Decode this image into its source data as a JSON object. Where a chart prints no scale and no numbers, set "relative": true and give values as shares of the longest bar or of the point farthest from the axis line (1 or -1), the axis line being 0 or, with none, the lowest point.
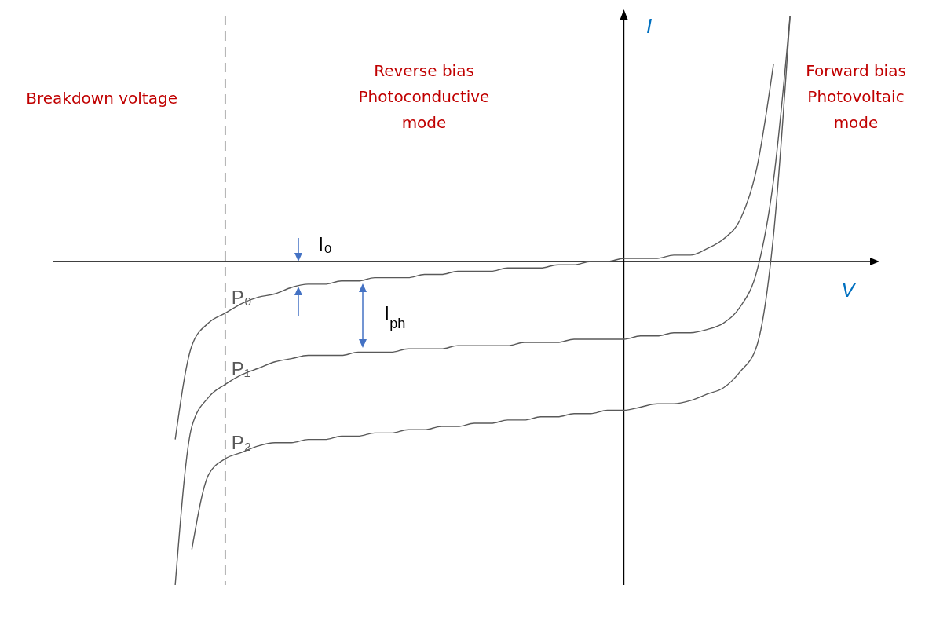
{
  "chart_data": {
    "type": "line",
    "relative": true,
    "xlabel": "V",
    "ylabel": "I",
    "categories": [
      null,
      null,
      null,
      null,
      null,
      null,
      null,
      null,
      null,
      null,
      null,
      null,
      null,
      null,
      null,
      null,
      null,
      null,
      null,
      null,
      null,
      null,
      null,
      null,
      null,
      null,
      null,
      null,
      null,
      null,
      null,
      null,
      null,
      null,
      null,
      null,
      null,
      null,
      null,
      null,
      null,
      null,
      null,
      null,
      null,
      null,
      null,
      null,
      null,
      null
    ],
    "series": [
      {
        "name": "P₀",
        "color": "#595959",
        "values": [
          null,
          null,
          null,
          null,
          null,
          null,
          null,
          -0.55,
          -0.26,
          -0.19,
          -0.16,
          -0.13,
          -0.11,
          -0.1,
          -0.08,
          -0.07,
          -0.07,
          -0.06,
          -0.06,
          -0.05,
          -0.05,
          -0.05,
          -0.04,
          -0.04,
          -0.03,
          -0.03,
          -0.03,
          -0.02,
          -0.02,
          -0.02,
          -0.01,
          -0.01,
          0,
          0,
          0.01,
          0.01,
          0.01,
          0.02,
          0.02,
          0.04,
          0.07,
          0.13,
          0.29,
          0.61,
          null,
          null,
          null,
          null,
          null,
          null
        ]
      },
      {
        "name": "P₁",
        "color": "#595959",
        "values": [
          null,
          null,
          null,
          null,
          null,
          null,
          null,
          -1,
          -0.51,
          -0.42,
          -0.38,
          -0.35,
          -0.33,
          -0.31,
          -0.3,
          -0.29,
          -0.29,
          -0.29,
          -0.28,
          -0.28,
          -0.28,
          -0.27,
          -0.27,
          -0.27,
          -0.26,
          -0.26,
          -0.26,
          -0.26,
          -0.25,
          -0.25,
          -0.25,
          -0.24,
          -0.24,
          -0.24,
          -0.24,
          -0.23,
          -0.23,
          -0.22,
          -0.22,
          -0.21,
          -0.19,
          -0.14,
          -0.03,
          0.25,
          0.76,
          null,
          null,
          null,
          null,
          null
        ]
      },
      {
        "name": "P₂",
        "color": "#595959",
        "values": [
          null,
          null,
          null,
          null,
          null,
          null,
          null,
          null,
          -0.89,
          -0.66,
          -0.61,
          -0.59,
          -0.57,
          -0.56,
          -0.56,
          -0.55,
          -0.55,
          -0.54,
          -0.54,
          -0.53,
          -0.53,
          -0.52,
          -0.52,
          -0.51,
          -0.51,
          -0.5,
          -0.5,
          -0.49,
          -0.49,
          -0.48,
          -0.48,
          -0.47,
          -0.47,
          -0.46,
          -0.46,
          -0.45,
          -0.44,
          -0.44,
          -0.43,
          -0.41,
          -0.39,
          -0.34,
          -0.26,
          0.08,
          0.76,
          null,
          null,
          null,
          null,
          null
        ]
      }
    ],
    "annotations": [
      "Reverse bias\nPhotoconductive\nmode",
      "Forward bias\nPhotovoltaic\nmode",
      "I₀",
      "I$_{ph}$",
      "Breakdown voltage"
    ]
  }
}
